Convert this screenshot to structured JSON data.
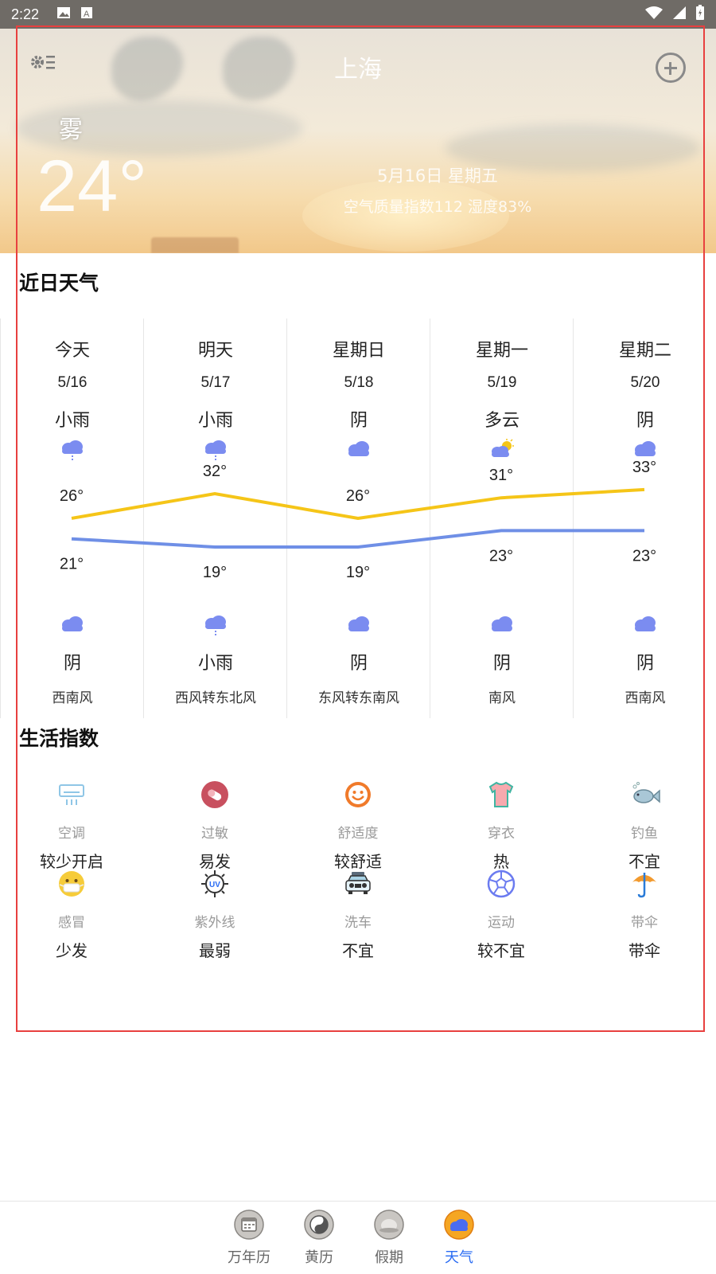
{
  "status_bar": {
    "time": "2:22"
  },
  "header": {
    "city": "上海",
    "current_condition": "雾",
    "current_temp": "24°",
    "date_line": "5月16日  星期五",
    "aqi_line": "空气质量指数112   湿度83%"
  },
  "forecast_section": {
    "title": "近日天气",
    "days": [
      {
        "day": "今天",
        "date": "5/16",
        "day_cond": "小雨",
        "day_icon": "light-rain-icon",
        "night_cond": "阴",
        "night_icon": "overcast-icon",
        "wind": "西南风"
      },
      {
        "day": "明天",
        "date": "5/17",
        "day_cond": "小雨",
        "day_icon": "light-rain-icon",
        "night_cond": "小雨",
        "night_icon": "light-rain-icon",
        "wind": "西风转东北风"
      },
      {
        "day": "星期日",
        "date": "5/18",
        "day_cond": "阴",
        "day_icon": "overcast-icon",
        "night_cond": "阴",
        "night_icon": "overcast-icon",
        "wind": "东风转东南风"
      },
      {
        "day": "星期一",
        "date": "5/19",
        "day_cond": "多云",
        "day_icon": "partly-cloudy-icon",
        "night_cond": "阴",
        "night_icon": "overcast-icon",
        "wind": "南风"
      },
      {
        "day": "星期二",
        "date": "5/20",
        "day_cond": "阴",
        "day_icon": "overcast-icon",
        "night_cond": "阴",
        "night_icon": "overcast-icon",
        "wind": "西南风"
      }
    ]
  },
  "chart_data": {
    "type": "line",
    "categories": [
      "5/16",
      "5/17",
      "5/18",
      "5/19",
      "5/20"
    ],
    "series": [
      {
        "values": [
          26,
          32,
          26,
          31,
          33
        ],
        "color": "#f5c518"
      },
      {
        "values": [
          21,
          19,
          19,
          23,
          23
        ],
        "color": "#6f8fe6"
      }
    ],
    "labels_high": [
      "26°",
      "32°",
      "26°",
      "31°",
      "33°"
    ],
    "labels_low": [
      "21°",
      "19°",
      "19°",
      "23°",
      "23°"
    ]
  },
  "life_section": {
    "title": "生活指数",
    "items": [
      {
        "name": "空调",
        "value": "较少开启",
        "icon": "air-conditioner-icon"
      },
      {
        "name": "过敏",
        "value": "易发",
        "icon": "allergy-pill-icon"
      },
      {
        "name": "舒适度",
        "value": "较舒适",
        "icon": "smile-face-icon"
      },
      {
        "name": "穿衣",
        "value": "热",
        "icon": "tshirt-icon"
      },
      {
        "name": "钓鱼",
        "value": "不宜",
        "icon": "fish-icon"
      },
      {
        "name": "感冒",
        "value": "少发",
        "icon": "mask-face-icon"
      },
      {
        "name": "紫外线",
        "value": "最弱",
        "icon": "uv-sun-icon"
      },
      {
        "name": "洗车",
        "value": "不宜",
        "icon": "car-icon"
      },
      {
        "name": "运动",
        "value": "较不宜",
        "icon": "soccer-ball-icon"
      },
      {
        "name": "带伞",
        "value": "带伞",
        "icon": "umbrella-icon"
      }
    ]
  },
  "bottom_nav": {
    "items": [
      {
        "label": "万年历",
        "icon": "calendar-icon"
      },
      {
        "label": "黄历",
        "icon": "yin-yang-icon"
      },
      {
        "label": "假期",
        "icon": "holiday-icon"
      },
      {
        "label": "天气",
        "icon": "weather-icon",
        "active": true
      }
    ]
  },
  "colors": {
    "accent": "#2a6cf3",
    "high_line": "#f5c518",
    "low_line": "#6f8fe6"
  }
}
